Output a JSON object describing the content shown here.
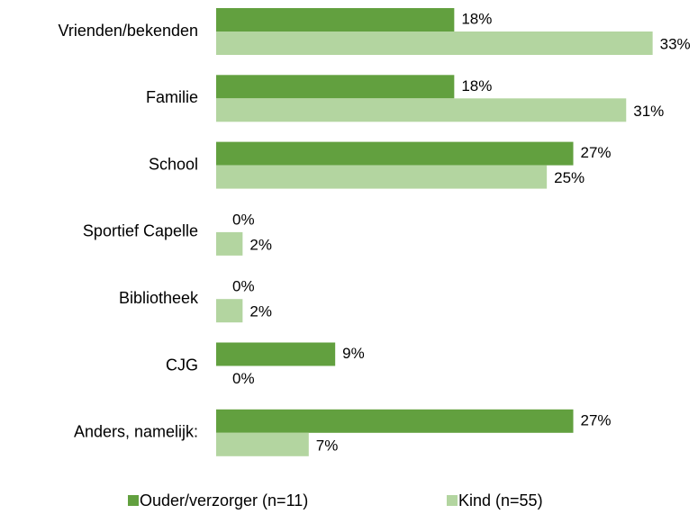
{
  "chart_data": {
    "type": "bar",
    "orientation": "horizontal",
    "categories": [
      "Vrienden/bekenden",
      "Familie",
      "School",
      "Sportief Capelle",
      "Bibliotheek",
      "CJG",
      "Anders, namelijk:"
    ],
    "series": [
      {
        "name": "Ouder/verzorger (n=11)",
        "color": "#62a03f",
        "values": [
          18,
          18,
          27,
          0,
          0,
          9,
          27
        ],
        "value_labels": [
          "18%",
          "18%",
          "27%",
          "0%",
          "0%",
          "9%",
          "27%"
        ]
      },
      {
        "name": "Kind (n=55)",
        "color": "#b3d5a0",
        "values": [
          33,
          31,
          25,
          2,
          2,
          0,
          7
        ],
        "value_labels": [
          "33%",
          "31%",
          "25%",
          "2%",
          "2%",
          "0%",
          "7%"
        ]
      }
    ],
    "xlim": [
      0,
      35
    ],
    "legend": "bottom"
  }
}
